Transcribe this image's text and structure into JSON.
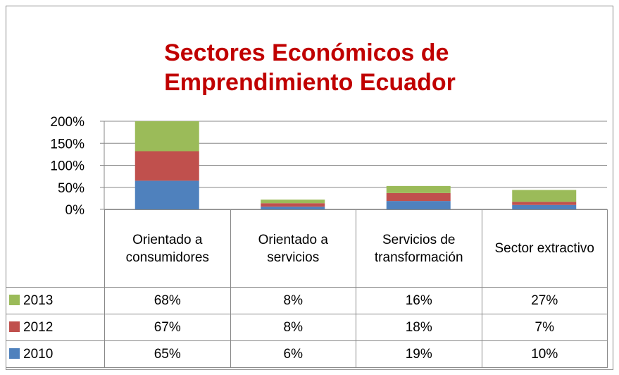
{
  "chart_data": {
    "type": "stacked_bar",
    "title": "Sectores Económicos de Emprendimiento Ecuador",
    "categories": [
      "Orientado a consumidores",
      "Orientado a servicios",
      "Servicios de transformación",
      "Sector extractivo"
    ],
    "series": [
      {
        "name": "2010",
        "color": "#4f81bd",
        "values": [
          65,
          6,
          19,
          10
        ],
        "value_labels": [
          "65%",
          "6%",
          "19%",
          "10%"
        ]
      },
      {
        "name": "2012",
        "color": "#c0504d",
        "values": [
          67,
          8,
          18,
          7
        ],
        "value_labels": [
          "67%",
          "8%",
          "18%",
          "7%"
        ]
      },
      {
        "name": "2013",
        "color": "#9bbb59",
        "values": [
          68,
          8,
          16,
          27
        ],
        "value_labels": [
          "68%",
          "8%",
          "16%",
          "27%"
        ]
      }
    ],
    "ylim": [
      0,
      200
    ],
    "yticks": [
      {
        "value": 0,
        "label": "0%"
      },
      {
        "value": 50,
        "label": "50%"
      },
      {
        "value": 100,
        "label": "100%"
      },
      {
        "value": 150,
        "label": "150%"
      },
      {
        "value": 200,
        "label": "200%"
      }
    ],
    "grid": true
  }
}
